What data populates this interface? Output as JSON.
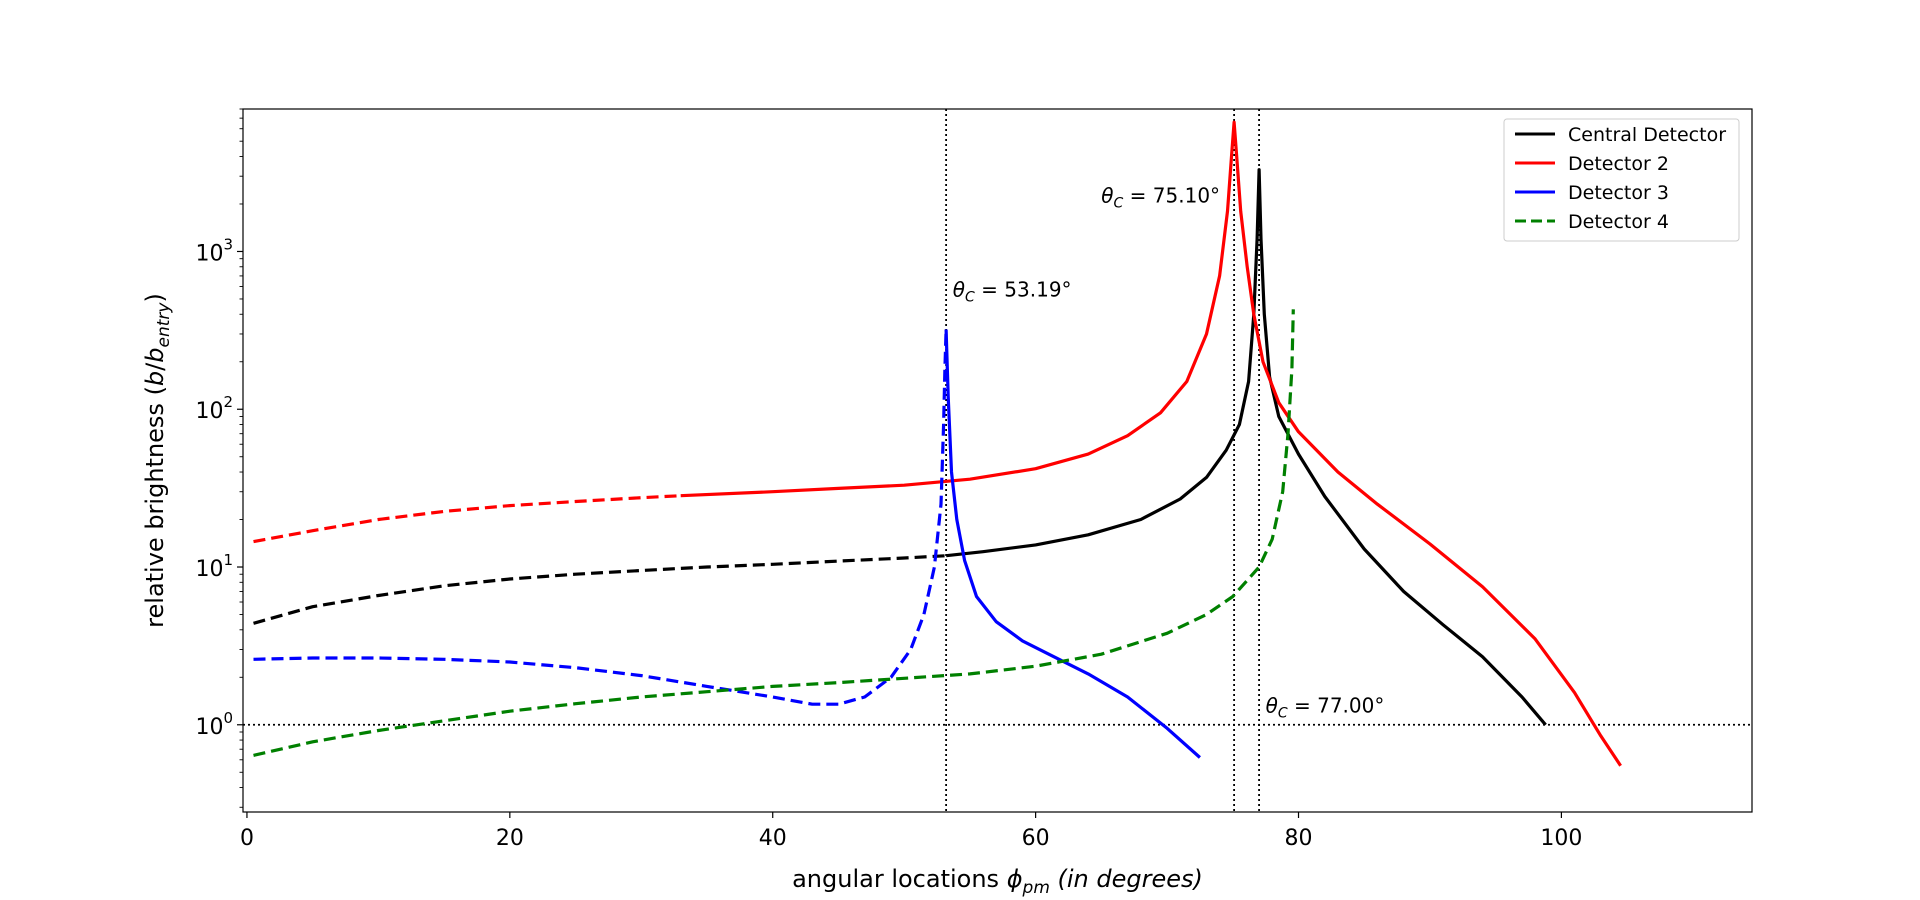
{
  "chart_data": {
    "type": "line",
    "xlabel_prefix": "angular locations ",
    "xlabel_symbol": "ϕ",
    "xlabel_subscript": "pm",
    "xlabel_unit": " (in degrees)",
    "ylabel_prefix": "relative brightness (",
    "ylabel_b": "b",
    "ylabel_slash": "/",
    "ylabel_b2": "b",
    "ylabel_subscript": "entry",
    "ylabel_suffix": ")",
    "yscale": "log",
    "xlim": [
      -0.3,
      114.5
    ],
    "ylim": [
      0.28,
      8000
    ],
    "xticks": [
      {
        "value": 0,
        "label": "0"
      },
      {
        "value": 20,
        "label": "20"
      },
      {
        "value": 40,
        "label": "40"
      },
      {
        "value": 60,
        "label": "60"
      },
      {
        "value": 80,
        "label": "80"
      },
      {
        "value": 100,
        "label": "100"
      }
    ],
    "yticks": [
      {
        "value": 1,
        "base": "10",
        "exp": "0"
      },
      {
        "value": 10,
        "base": "10",
        "exp": "1"
      },
      {
        "value": 100,
        "base": "10",
        "exp": "2"
      },
      {
        "value": 1000,
        "base": "10",
        "exp": "3"
      }
    ],
    "reference_lines": [
      {
        "orientation": "vertical",
        "x": 53.19,
        "style": "dotted"
      },
      {
        "orientation": "vertical",
        "x": 75.1,
        "style": "dotted"
      },
      {
        "orientation": "vertical",
        "x": 77.0,
        "style": "dotted"
      },
      {
        "orientation": "horizontal",
        "y": 1,
        "style": "dotted"
      }
    ],
    "annotations": [
      {
        "id": "a1",
        "theta": "θ",
        "sub": "C",
        "value": " = 53.19°",
        "x": 53.7,
        "y": 520
      },
      {
        "id": "a2",
        "theta": "θ",
        "sub": "C",
        "value": " = 75.10°",
        "x": 65.0,
        "y": 2050
      },
      {
        "id": "a3",
        "theta": "θ",
        "sub": "C",
        "value": " = 77.00°",
        "x": 77.5,
        "y": 1.2
      }
    ],
    "legend": {
      "position": "upper right",
      "entries": [
        {
          "label": "Central Detector",
          "color": "#000000",
          "style": "solid"
        },
        {
          "label": "Detector 2",
          "color": "#ff0000",
          "style": "solid"
        },
        {
          "label": "Detector 3",
          "color": "#0000ff",
          "style": "solid"
        },
        {
          "label": "Detector 4",
          "color": "#008000",
          "style": "dashed"
        }
      ]
    },
    "series": [
      {
        "color": "#000000",
        "segments": [
          {
            "style": "dashed",
            "points": [
              [
                0.5,
                4.4
              ],
              [
                5,
                5.6
              ],
              [
                10,
                6.6
              ],
              [
                15,
                7.6
              ],
              [
                20,
                8.4
              ],
              [
                25,
                9.0
              ],
              [
                30,
                9.5
              ],
              [
                35,
                10.0
              ],
              [
                40,
                10.4
              ],
              [
                45,
                10.9
              ],
              [
                50,
                11.4
              ],
              [
                53.2,
                11.8
              ]
            ]
          },
          {
            "style": "solid",
            "points": [
              [
                53.2,
                11.8
              ],
              [
                56,
                12.5
              ],
              [
                60,
                13.8
              ],
              [
                64,
                16.0
              ],
              [
                68,
                20.0
              ],
              [
                71,
                27.0
              ],
              [
                73,
                37.0
              ],
              [
                74.5,
                55.0
              ],
              [
                75.5,
                80.0
              ],
              [
                76.2,
                150.0
              ],
              [
                76.6,
                400.0
              ],
              [
                76.85,
                1200.0
              ],
              [
                77.0,
                3300.0
              ],
              [
                77.15,
                1200.0
              ],
              [
                77.4,
                400.0
              ],
              [
                77.8,
                160.0
              ],
              [
                78.5,
                90.0
              ],
              [
                80,
                52.0
              ],
              [
                82,
                28.0
              ],
              [
                85,
                13.0
              ],
              [
                88,
                7.0
              ],
              [
                91,
                4.3
              ],
              [
                94,
                2.7
              ],
              [
                97,
                1.5
              ],
              [
                98.8,
                1.0
              ]
            ]
          }
        ]
      },
      {
        "color": "#ff0000",
        "segments": [
          {
            "style": "dashed",
            "points": [
              [
                0.5,
                14.5
              ],
              [
                5,
                17.0
              ],
              [
                10,
                20.0
              ],
              [
                15,
                22.5
              ],
              [
                20,
                24.5
              ],
              [
                25,
                26.0
              ],
              [
                30,
                27.5
              ],
              [
                33,
                28.3
              ]
            ]
          },
          {
            "style": "solid",
            "points": [
              [
                33,
                28.3
              ],
              [
                40,
                30.0
              ],
              [
                45,
                31.5
              ],
              [
                50,
                33.0
              ],
              [
                55,
                36.0
              ],
              [
                60,
                42.0
              ],
              [
                64,
                52.0
              ],
              [
                67,
                68.0
              ],
              [
                69.5,
                95.0
              ],
              [
                71.5,
                150.0
              ],
              [
                73,
                300.0
              ],
              [
                74,
                700.0
              ],
              [
                74.6,
                1800.0
              ],
              [
                74.9,
                4000.0
              ],
              [
                75.1,
                6600.0
              ],
              [
                75.3,
                4000.0
              ],
              [
                75.6,
                1800.0
              ],
              [
                76.1,
                800.0
              ],
              [
                76.6,
                400.0
              ],
              [
                77.3,
                200.0
              ],
              [
                78.5,
                110.0
              ],
              [
                80,
                72.0
              ],
              [
                83,
                40.0
              ],
              [
                86,
                25.0
              ],
              [
                90,
                14.0
              ],
              [
                94,
                7.5
              ],
              [
                98,
                3.5
              ],
              [
                101,
                1.6
              ],
              [
                103,
                0.85
              ],
              [
                104.5,
                0.55
              ]
            ]
          }
        ]
      },
      {
        "color": "#0000ff",
        "segments": [
          {
            "style": "dashed",
            "points": [
              [
                0.5,
                2.6
              ],
              [
                5,
                2.65
              ],
              [
                10,
                2.65
              ],
              [
                15,
                2.6
              ],
              [
                20,
                2.5
              ],
              [
                25,
                2.3
              ],
              [
                30,
                2.05
              ],
              [
                35,
                1.75
              ],
              [
                40,
                1.5
              ],
              [
                43,
                1.35
              ],
              [
                45,
                1.35
              ],
              [
                47,
                1.5
              ],
              [
                49,
                2.0
              ],
              [
                50.5,
                3.0
              ],
              [
                51.5,
                5.0
              ],
              [
                52.3,
                10.0
              ],
              [
                52.8,
                25.0
              ],
              [
                53.0,
                80.0
              ],
              [
                53.1,
                180.0
              ],
              [
                53.19,
                320.0
              ]
            ]
          },
          {
            "style": "solid",
            "points": [
              [
                53.19,
                320.0
              ],
              [
                53.35,
                120.0
              ],
              [
                53.6,
                40.0
              ],
              [
                54,
                20.0
              ],
              [
                54.6,
                11.0
              ],
              [
                55.5,
                6.5
              ],
              [
                57,
                4.5
              ],
              [
                59,
                3.4
              ],
              [
                61,
                2.8
              ],
              [
                64,
                2.1
              ],
              [
                67,
                1.5
              ],
              [
                70,
                0.95
              ],
              [
                72.5,
                0.62
              ]
            ]
          }
        ]
      },
      {
        "color": "#008000",
        "segments": [
          {
            "style": "dashed",
            "points": [
              [
                0.5,
                0.64
              ],
              [
                5,
                0.78
              ],
              [
                10,
                0.92
              ],
              [
                15,
                1.06
              ],
              [
                20,
                1.22
              ],
              [
                25,
                1.36
              ],
              [
                30,
                1.5
              ],
              [
                35,
                1.62
              ],
              [
                40,
                1.75
              ],
              [
                45,
                1.85
              ],
              [
                50,
                1.97
              ],
              [
                55,
                2.1
              ],
              [
                60,
                2.35
              ],
              [
                65,
                2.8
              ],
              [
                70,
                3.8
              ],
              [
                73,
                5.0
              ],
              [
                75,
                6.5
              ],
              [
                77,
                10.0
              ],
              [
                78,
                15.0
              ],
              [
                78.8,
                30.0
              ],
              [
                79.2,
                70.0
              ],
              [
                79.5,
                180.0
              ],
              [
                79.6,
                430.0
              ]
            ]
          }
        ]
      }
    ]
  }
}
